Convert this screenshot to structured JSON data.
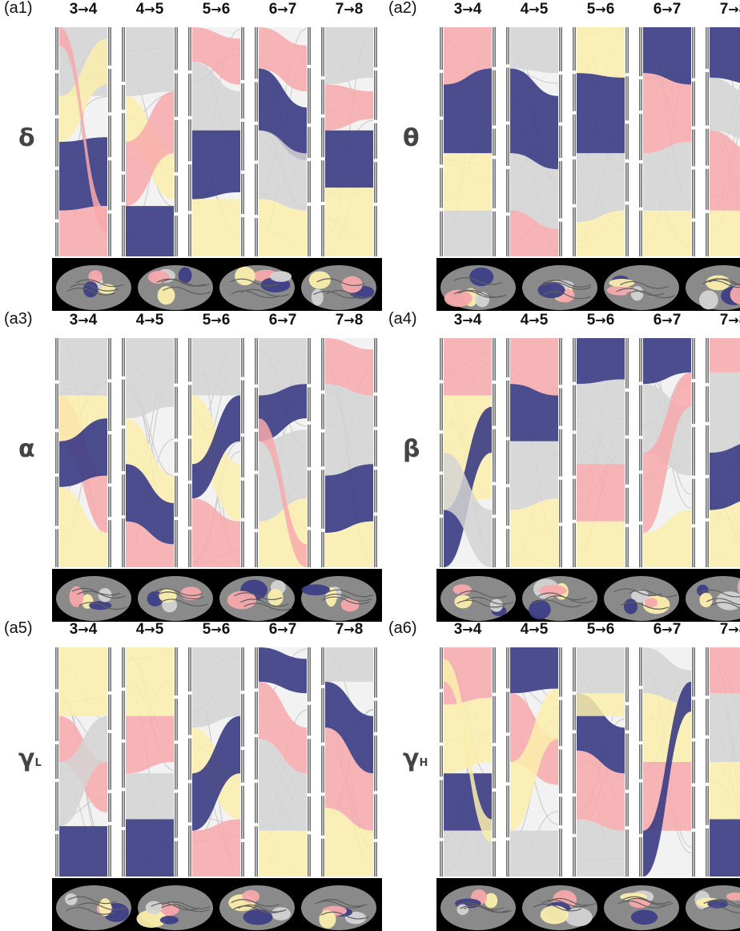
{
  "colors": {
    "module_blue": "#3d3f86",
    "module_yellow": "#fbeeac",
    "module_pink": "#f7a9ab",
    "module_gray": "#d3d3d4",
    "frame": "#777777",
    "brain_bg": "#000000",
    "cortex_gray": "#8a8a8a"
  },
  "transitions": [
    {
      "from": "3",
      "to": "4"
    },
    {
      "from": "4",
      "to": "5"
    },
    {
      "from": "5",
      "to": "6"
    },
    {
      "from": "6",
      "to": "7"
    },
    {
      "from": "7",
      "to": "8"
    }
  ],
  "arrow_glyph": "→",
  "panels": [
    {
      "id": "(a1)",
      "band": "δ",
      "band_sub": ""
    },
    {
      "id": "(a2)",
      "band": "θ",
      "band_sub": ""
    },
    {
      "id": "(a3)",
      "band": "α",
      "band_sub": ""
    },
    {
      "id": "(a4)",
      "band": "β",
      "band_sub": ""
    },
    {
      "id": "(a5)",
      "band": "γ",
      "band_sub": "L"
    },
    {
      "id": "(a6)",
      "band": "γ",
      "band_sub": "H"
    }
  ]
}
